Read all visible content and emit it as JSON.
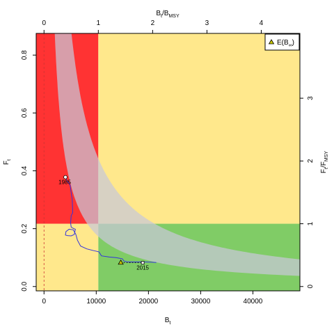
{
  "chart_data": {
    "type": "line",
    "title": "",
    "xlabel": "B",
    "xlabel_sub": "t",
    "ylabel": "F",
    "ylabel_sub": "t",
    "top_label": "B",
    "top_label_sub": "t",
    "top_label_sep": "/B",
    "top_label_sub2": "MSY",
    "right_label": "F",
    "right_label_sub": "t",
    "right_label_sep": "/F",
    "right_label_sub2": "MSY",
    "xlim": [
      -1500,
      49000
    ],
    "ylim": [
      -0.015,
      0.875
    ],
    "bmsy": 10400,
    "fmsy": 0.217,
    "x_ticks": [
      0,
      10000,
      20000,
      30000,
      40000
    ],
    "x_tick_labels": [
      "0",
      "10000",
      "20000",
      "30000",
      "40000"
    ],
    "y_ticks": [
      0.0,
      0.2,
      0.4,
      0.6,
      0.8
    ],
    "y_tick_labels": [
      "0.0",
      "0.2",
      "0.4",
      "0.6",
      "0.8"
    ],
    "top_ticks": [
      0,
      1,
      2,
      3,
      4
    ],
    "top_tick_labels": [
      "0",
      "1",
      "2",
      "3",
      "4"
    ],
    "right_ticks": [
      0,
      1,
      2,
      3
    ],
    "right_tick_labels": [
      "0",
      "1",
      "2",
      "3"
    ],
    "zones": {
      "red": "#ff3333",
      "yellow": "#ffe88c",
      "green": "#80cc66",
      "confidence": "#c8c8d8",
      "trajectory": "#3333dd",
      "reference_line": "#cc3333"
    },
    "confidence_region": {
      "upper_k": 4600,
      "lower_k": 1800
    },
    "trajectory": {
      "x": [
        4100,
        4400,
        4700,
        5000,
        5400,
        5500,
        5200,
        5100,
        5200,
        5700,
        6000,
        5800,
        5200,
        4500,
        4100,
        4200,
        4800,
        5600,
        6100,
        6400,
        7000,
        8200,
        9500,
        10500,
        11000,
        12500,
        13800,
        15000,
        15300,
        16000,
        17500,
        19000,
        20500,
        21500
      ],
      "y": [
        0.378,
        0.365,
        0.36,
        0.35,
        0.3,
        0.255,
        0.245,
        0.22,
        0.205,
        0.2,
        0.198,
        0.18,
        0.175,
        0.176,
        0.178,
        0.19,
        0.198,
        0.196,
        0.18,
        0.16,
        0.14,
        0.13,
        0.124,
        0.12,
        0.106,
        0.102,
        0.1,
        0.096,
        0.088,
        0.085,
        0.085,
        0.085,
        0.084,
        0.083
      ]
    },
    "start_point": {
      "x": 4100,
      "y": 0.378,
      "label": "1985"
    },
    "end_point": {
      "x": 18900,
      "y": 0.082,
      "label": "2015"
    },
    "expected_point": {
      "x": 14700,
      "y": 0.083
    },
    "dashed_link": {
      "x": [
        14700,
        18900
      ],
      "y": [
        0.083,
        0.082
      ]
    },
    "legend": {
      "position": "top-right",
      "label": "E(B",
      "label_sub": "∞",
      "label_end": ")"
    }
  }
}
